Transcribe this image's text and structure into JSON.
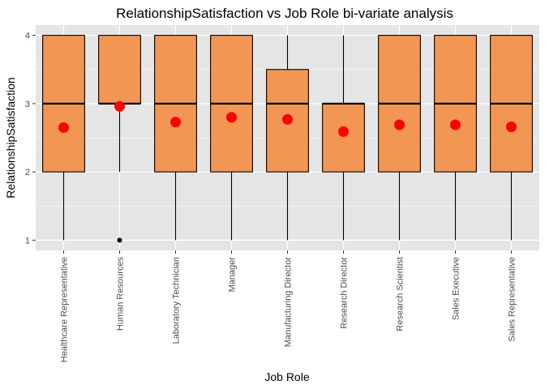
{
  "chart_data": {
    "type": "boxplot",
    "title": "RelationshipSatisfaction vs Job Role bi-variate analysis",
    "xlabel": "Job Role",
    "ylabel": "RelationshipSatisfaction",
    "ylim": [
      0.85,
      4.15
    ],
    "y_ticks": [
      1,
      2,
      3,
      4
    ],
    "grid": true,
    "colors": {
      "panel_background": "#e5e5e5",
      "grid": "#ffffff",
      "box_fill": "#f19653",
      "box_stroke": "#000000",
      "mean_point": "#ff0000",
      "outlier": "#000000"
    },
    "categories": [
      "Healthcare Representative",
      "Human Resources",
      "Laboratory Technician",
      "Manager",
      "Manufacturing Director",
      "Research Director",
      "Research Scientist",
      "Sales Executive",
      "Sales Representative"
    ],
    "boxes": [
      {
        "category": "Healthcare Representative",
        "min": 1,
        "q1": 2,
        "median": 3,
        "q3": 4,
        "max": 4,
        "mean": 2.65,
        "outliers": []
      },
      {
        "category": "Human Resources",
        "min": 2,
        "q1": 3,
        "median": 3,
        "q3": 4,
        "max": 4,
        "mean": 2.96,
        "outliers": [
          1
        ]
      },
      {
        "category": "Laboratory Technician",
        "min": 1,
        "q1": 2,
        "median": 3,
        "q3": 4,
        "max": 4,
        "mean": 2.73,
        "outliers": []
      },
      {
        "category": "Manager",
        "min": 1,
        "q1": 2,
        "median": 3,
        "q3": 4,
        "max": 4,
        "mean": 2.8,
        "outliers": []
      },
      {
        "category": "Manufacturing Director",
        "min": 1,
        "q1": 2,
        "median": 3,
        "q3": 3.5,
        "max": 4,
        "mean": 2.77,
        "outliers": []
      },
      {
        "category": "Research Director",
        "min": 1,
        "q1": 2,
        "median": 3,
        "q3": 3,
        "max": 4,
        "mean": 2.59,
        "outliers": []
      },
      {
        "category": "Research Scientist",
        "min": 1,
        "q1": 2,
        "median": 3,
        "q3": 4,
        "max": 4,
        "mean": 2.69,
        "outliers": []
      },
      {
        "category": "Sales Executive",
        "min": 1,
        "q1": 2,
        "median": 3,
        "q3": 4,
        "max": 4,
        "mean": 2.69,
        "outliers": []
      },
      {
        "category": "Sales Representative",
        "min": 1,
        "q1": 2,
        "median": 3,
        "q3": 4,
        "max": 4,
        "mean": 2.66,
        "outliers": []
      }
    ]
  }
}
